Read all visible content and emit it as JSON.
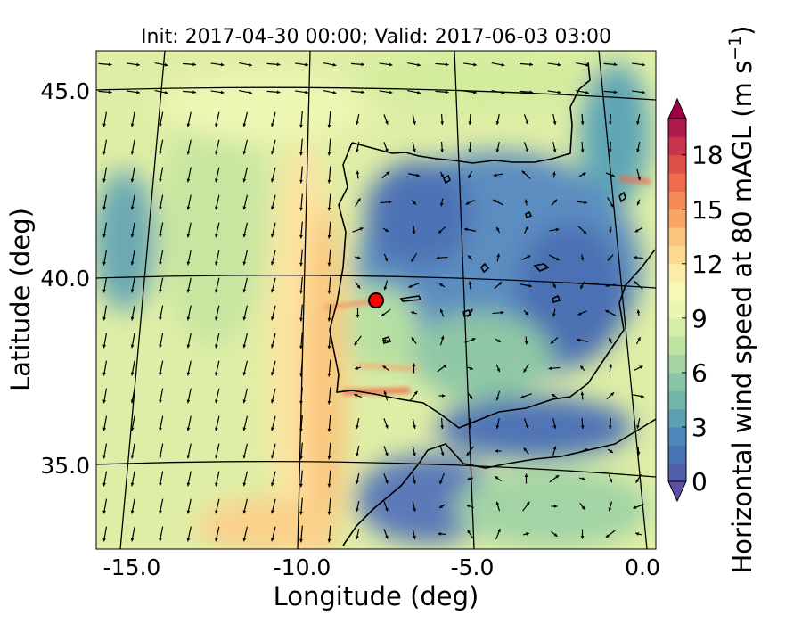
{
  "title": "Init: 2017-04-30 00:00; Valid: 2017-06-03 03:00",
  "x_axis": {
    "label": "Longitude (deg)",
    "ticks": [
      {
        "value": -15,
        "label": "-15.0"
      },
      {
        "value": -10,
        "label": "-10.0"
      },
      {
        "value": -5,
        "label": "-5.0"
      },
      {
        "value": 0,
        "label": "0.0"
      }
    ]
  },
  "y_axis": {
    "label": "Latitude (deg)",
    "ticks": [
      {
        "value": 45,
        "label": "45.0"
      },
      {
        "value": 40,
        "label": "40.0"
      },
      {
        "value": 35,
        "label": "35.0"
      }
    ]
  },
  "colorbar": {
    "label": "Horizontal wind speed at 80 mAGL (m s",
    "label_sup": "−1",
    "label_close": ")",
    "min": 0,
    "max": 20,
    "step": 1,
    "extend": "both",
    "ticks": [
      {
        "value": 0,
        "label": "0"
      },
      {
        "value": 3,
        "label": "3"
      },
      {
        "value": 6,
        "label": "6"
      },
      {
        "value": 9,
        "label": "9"
      },
      {
        "value": 12,
        "label": "12"
      },
      {
        "value": 15,
        "label": "15"
      },
      {
        "value": 18,
        "label": "18"
      }
    ],
    "colors": [
      "#4f5fab",
      "#4673b4",
      "#4b88b9",
      "#5da0b6",
      "#72b5aa",
      "#8ac6a5",
      "#a5d5a4",
      "#bfe3a0",
      "#d7edaa",
      "#eaf5b0",
      "#f7f8b4",
      "#fcecab",
      "#fdd98f",
      "#fcc47a",
      "#f9a665",
      "#f58a55",
      "#ec6c4d",
      "#dd5148",
      "#c83449",
      "#ad1c4a"
    ],
    "under_color": "#5e4fa2",
    "over_color": "#9e0142"
  },
  "marker": {
    "lon": -7.7,
    "lat": 39.35,
    "color": "#ff0000"
  }
}
